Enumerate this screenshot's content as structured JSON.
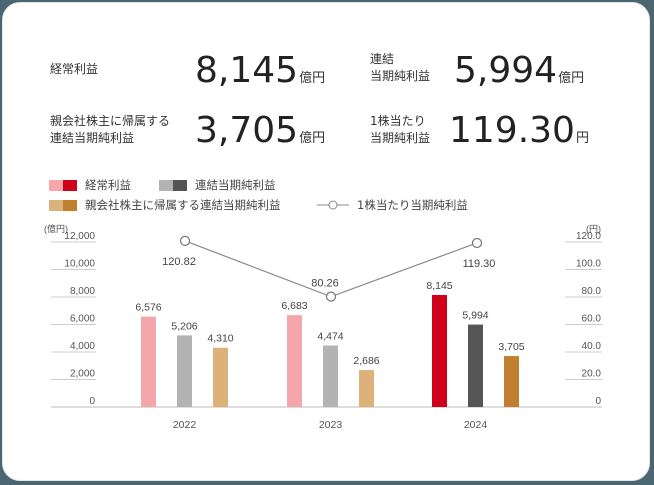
{
  "kpis": [
    {
      "label_lines": [
        "経常利益"
      ],
      "value": "8,145",
      "unit": "億円"
    },
    {
      "label_lines": [
        "連結",
        "当期純利益"
      ],
      "value": "5,994",
      "unit": "億円"
    },
    {
      "label_lines": [
        "親会社株主に帰属する",
        "連結当期純利益"
      ],
      "value": "3,705",
      "unit": "億円"
    },
    {
      "label_lines": [
        "1株当たり",
        "当期純利益"
      ],
      "value": "119.30",
      "unit": "円"
    }
  ],
  "legend": [
    {
      "label": "経常利益",
      "colors": [
        "#f4a6ab",
        "#d0021b"
      ]
    },
    {
      "label": "連結当期純利益",
      "colors": [
        "#b3b3b3",
        "#555555"
      ]
    },
    {
      "label": "親会社株主に帰属する連結当期純利益",
      "colors": [
        "#dcb27a",
        "#c08030"
      ]
    },
    {
      "label": "1株当たり当期純利益",
      "type": "line-marker"
    }
  ],
  "chart_data": {
    "type": "bar",
    "title": "",
    "categories": [
      "2022",
      "2023",
      "2024"
    ],
    "xlabel": "",
    "ylabel": "(億円)",
    "ylabel_right": "(円)",
    "ylim": [
      0,
      12000
    ],
    "ylim_right": [
      0,
      120
    ],
    "yticks": [
      "0",
      "2,000",
      "4,000",
      "6,000",
      "8,000",
      "10,000",
      "12,000"
    ],
    "yticks_right": [
      "0",
      "20.0",
      "40.0",
      "60.0",
      "80.0",
      "100.0",
      "120.0"
    ],
    "grid": true,
    "legend_position": "top",
    "series": [
      {
        "name": "経常利益",
        "type": "bar",
        "axis": "left",
        "values": [
          6576,
          6683,
          8145
        ],
        "labels": [
          "6,576",
          "6,683",
          "8,145"
        ],
        "colors": [
          "#f4a6ab",
          "#f4a6ab",
          "#d0021b"
        ]
      },
      {
        "name": "連結当期純利益",
        "type": "bar",
        "axis": "left",
        "values": [
          5206,
          4474,
          5994
        ],
        "labels": [
          "5,206",
          "4,474",
          "5,994"
        ],
        "colors": [
          "#b3b3b3",
          "#b3b3b3",
          "#555555"
        ]
      },
      {
        "name": "親会社株主に帰属する連結当期純利益",
        "type": "bar",
        "axis": "left",
        "values": [
          4310,
          2686,
          3705
        ],
        "labels": [
          "4,310",
          "2,686",
          "3,705"
        ],
        "colors": [
          "#dcb27a",
          "#dcb27a",
          "#c08030"
        ]
      },
      {
        "name": "1株当たり当期純利益",
        "type": "line",
        "axis": "right",
        "values": [
          120.82,
          80.26,
          119.3
        ],
        "labels": [
          "120.82",
          "80.26",
          "119.30"
        ],
        "color": "#888888"
      }
    ]
  }
}
